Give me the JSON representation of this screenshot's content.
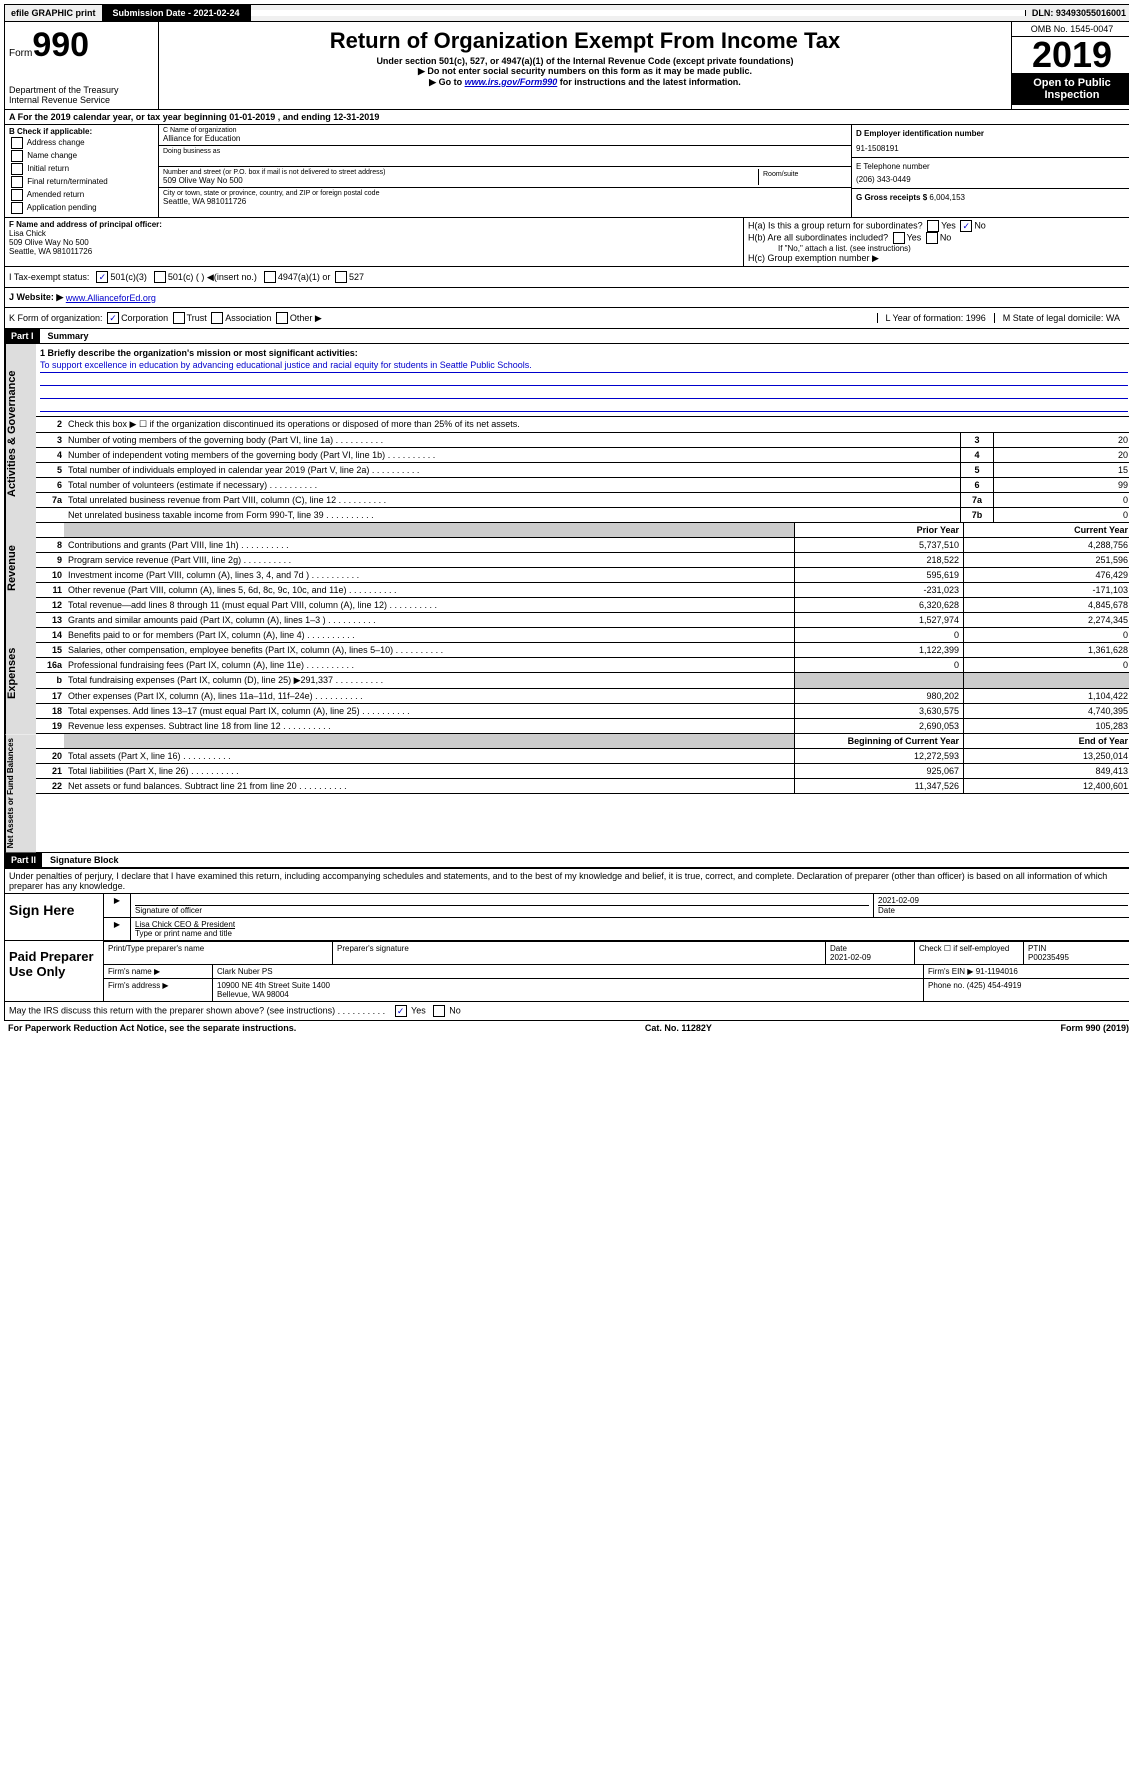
{
  "top": {
    "efile": "efile GRAPHIC print",
    "sub_label": "Submission Date - 2021-02-24",
    "dln": "DLN: 93493055016001"
  },
  "header": {
    "form_label": "Form",
    "form_num": "990",
    "dept": "Department of the Treasury\nInternal Revenue Service",
    "title": "Return of Organization Exempt From Income Tax",
    "subtitle": "Under section 501(c), 527, or 4947(a)(1) of the Internal Revenue Code (except private foundations)",
    "note1": "▶ Do not enter social security numbers on this form as it may be made public.",
    "note2_a": "▶ Go to ",
    "note2_link": "www.irs.gov/Form990",
    "note2_b": " for instructions and the latest information.",
    "omb": "OMB No. 1545-0047",
    "year": "2019",
    "open": "Open to Public Inspection"
  },
  "rowA": "A   For the 2019 calendar year, or tax year beginning 01-01-2019    , and ending 12-31-2019",
  "colB": {
    "title": "B Check if applicable:",
    "opts": [
      "Address change",
      "Name change",
      "Initial return",
      "Final return/terminated",
      "Amended return",
      "Application pending"
    ]
  },
  "colC": {
    "name_label": "C Name of organization",
    "name": "Alliance for Education",
    "dba_label": "Doing business as",
    "addr_label": "Number and street (or P.O. box if mail is not delivered to street address)",
    "room_label": "Room/suite",
    "addr": "509 Olive Way No 500",
    "city_label": "City or town, state or province, country, and ZIP or foreign postal code",
    "city": "Seattle, WA  981011726"
  },
  "colD": {
    "ein_label": "D Employer identification number",
    "ein": "91-1508191",
    "phone_label": "E Telephone number",
    "phone": "(206) 343-0449",
    "gross_label": "G Gross receipts $",
    "gross": "6,004,153"
  },
  "rowF": {
    "label": "F  Name and address of principal officer:",
    "name": "Lisa Chick",
    "addr1": "509 Olive Way No 500",
    "addr2": "Seattle, WA  981011726"
  },
  "rowH": {
    "ha": "H(a)  Is this a group return for subordinates?",
    "hb": "H(b)  Are all subordinates included?",
    "hb_note": "If \"No,\" attach a list. (see instructions)",
    "hc": "H(c)  Group exemption number ▶",
    "yes": "Yes",
    "no": "No"
  },
  "rowI": {
    "label": "I    Tax-exempt status:",
    "o1": "501(c)(3)",
    "o2": "501(c) (  ) ◀(insert no.)",
    "o3": "4947(a)(1) or",
    "o4": "527"
  },
  "rowJ": {
    "label": "J    Website: ▶",
    "val": "www.AllianceforEd.org"
  },
  "rowK": {
    "label": "K Form of organization:",
    "o1": "Corporation",
    "o2": "Trust",
    "o3": "Association",
    "o4": "Other ▶",
    "l": "L Year of formation: 1996",
    "m": "M State of legal domicile: WA"
  },
  "part1": {
    "header": "Part I",
    "title": "Summary",
    "mission_label": "1  Briefly describe the organization's mission or most significant activities:",
    "mission": "To support excellence in education by advancing educational justice and racial equity for students in Seattle Public Schools.",
    "line2": "Check this box ▶ ☐  if the organization discontinued its operations or disposed of more than 25% of its net assets.",
    "lines_gov": [
      {
        "n": "3",
        "d": "Number of voting members of the governing body (Part VI, line 1a)",
        "b": "3",
        "v": "20"
      },
      {
        "n": "4",
        "d": "Number of independent voting members of the governing body (Part VI, line 1b)",
        "b": "4",
        "v": "20"
      },
      {
        "n": "5",
        "d": "Total number of individuals employed in calendar year 2019 (Part V, line 2a)",
        "b": "5",
        "v": "15"
      },
      {
        "n": "6",
        "d": "Total number of volunteers (estimate if necessary)",
        "b": "6",
        "v": "99"
      },
      {
        "n": "7a",
        "d": "Total unrelated business revenue from Part VIII, column (C), line 12",
        "b": "7a",
        "v": "0"
      },
      {
        "n": "",
        "d": "Net unrelated business taxable income from Form 990-T, line 39",
        "b": "7b",
        "v": "0"
      }
    ],
    "hdr_prior": "Prior Year",
    "hdr_curr": "Current Year",
    "lines_rev": [
      {
        "n": "8",
        "d": "Contributions and grants (Part VIII, line 1h)",
        "p": "5,737,510",
        "c": "4,288,756"
      },
      {
        "n": "9",
        "d": "Program service revenue (Part VIII, line 2g)",
        "p": "218,522",
        "c": "251,596"
      },
      {
        "n": "10",
        "d": "Investment income (Part VIII, column (A), lines 3, 4, and 7d )",
        "p": "595,619",
        "c": "476,429"
      },
      {
        "n": "11",
        "d": "Other revenue (Part VIII, column (A), lines 5, 6d, 8c, 9c, 10c, and 11e)",
        "p": "-231,023",
        "c": "-171,103"
      },
      {
        "n": "12",
        "d": "Total revenue—add lines 8 through 11 (must equal Part VIII, column (A), line 12)",
        "p": "6,320,628",
        "c": "4,845,678"
      }
    ],
    "lines_exp": [
      {
        "n": "13",
        "d": "Grants and similar amounts paid (Part IX, column (A), lines 1–3 )",
        "p": "1,527,974",
        "c": "2,274,345"
      },
      {
        "n": "14",
        "d": "Benefits paid to or for members (Part IX, column (A), line 4)",
        "p": "0",
        "c": "0"
      },
      {
        "n": "15",
        "d": "Salaries, other compensation, employee benefits (Part IX, column (A), lines 5–10)",
        "p": "1,122,399",
        "c": "1,361,628"
      },
      {
        "n": "16a",
        "d": "Professional fundraising fees (Part IX, column (A), line 11e)",
        "p": "0",
        "c": "0"
      },
      {
        "n": "b",
        "d": "Total fundraising expenses (Part IX, column (D), line 25) ▶291,337",
        "p": "",
        "c": "",
        "shaded": true
      },
      {
        "n": "17",
        "d": "Other expenses (Part IX, column (A), lines 11a–11d, 11f–24e)",
        "p": "980,202",
        "c": "1,104,422"
      },
      {
        "n": "18",
        "d": "Total expenses. Add lines 13–17 (must equal Part IX, column (A), line 25)",
        "p": "3,630,575",
        "c": "4,740,395"
      },
      {
        "n": "19",
        "d": "Revenue less expenses. Subtract line 18 from line 12",
        "p": "2,690,053",
        "c": "105,283"
      }
    ],
    "hdr_beg": "Beginning of Current Year",
    "hdr_end": "End of Year",
    "lines_net": [
      {
        "n": "20",
        "d": "Total assets (Part X, line 16)",
        "p": "12,272,593",
        "c": "13,250,014"
      },
      {
        "n": "21",
        "d": "Total liabilities (Part X, line 26)",
        "p": "925,067",
        "c": "849,413"
      },
      {
        "n": "22",
        "d": "Net assets or fund balances. Subtract line 21 from line 20",
        "p": "11,347,526",
        "c": "12,400,601"
      }
    ],
    "tab_gov": "Activities & Governance",
    "tab_rev": "Revenue",
    "tab_exp": "Expenses",
    "tab_net": "Net Assets or Fund Balances"
  },
  "part2": {
    "header": "Part II",
    "title": "Signature Block",
    "decl": "Under penalties of perjury, I declare that I have examined this return, including accompanying schedules and statements, and to the best of my knowledge and belief, it is true, correct, and complete. Declaration of preparer (other than officer) is based on all information of which preparer has any knowledge.",
    "sign_here": "Sign Here",
    "sig_officer": "Signature of officer",
    "sig_date": "2021-02-09",
    "date_label": "Date",
    "officer_name": "Lisa Chick CEO & President",
    "type_label": "Type or print name and title",
    "paid": "Paid Preparer Use Only",
    "prep_name_label": "Print/Type preparer's name",
    "prep_sig_label": "Preparer's signature",
    "prep_date_label": "Date",
    "prep_date": "2021-02-09",
    "self_emp": "Check ☐ if self-employed",
    "ptin_label": "PTIN",
    "ptin": "P00235495",
    "firm_name_label": "Firm's name    ▶",
    "firm_name": "Clark Nuber PS",
    "firm_ein_label": "Firm's EIN ▶",
    "firm_ein": "91-1194016",
    "firm_addr_label": "Firm's address ▶",
    "firm_addr": "10900 NE 4th Street Suite 1400\nBellevue, WA  98004",
    "firm_phone_label": "Phone no.",
    "firm_phone": "(425) 454-4919",
    "discuss": "May the IRS discuss this return with the preparer shown above? (see instructions)",
    "yes": "Yes",
    "no": "No"
  },
  "footer": {
    "pra": "For Paperwork Reduction Act Notice, see the separate instructions.",
    "cat": "Cat. No. 11282Y",
    "form": "Form 990 (2019)"
  }
}
